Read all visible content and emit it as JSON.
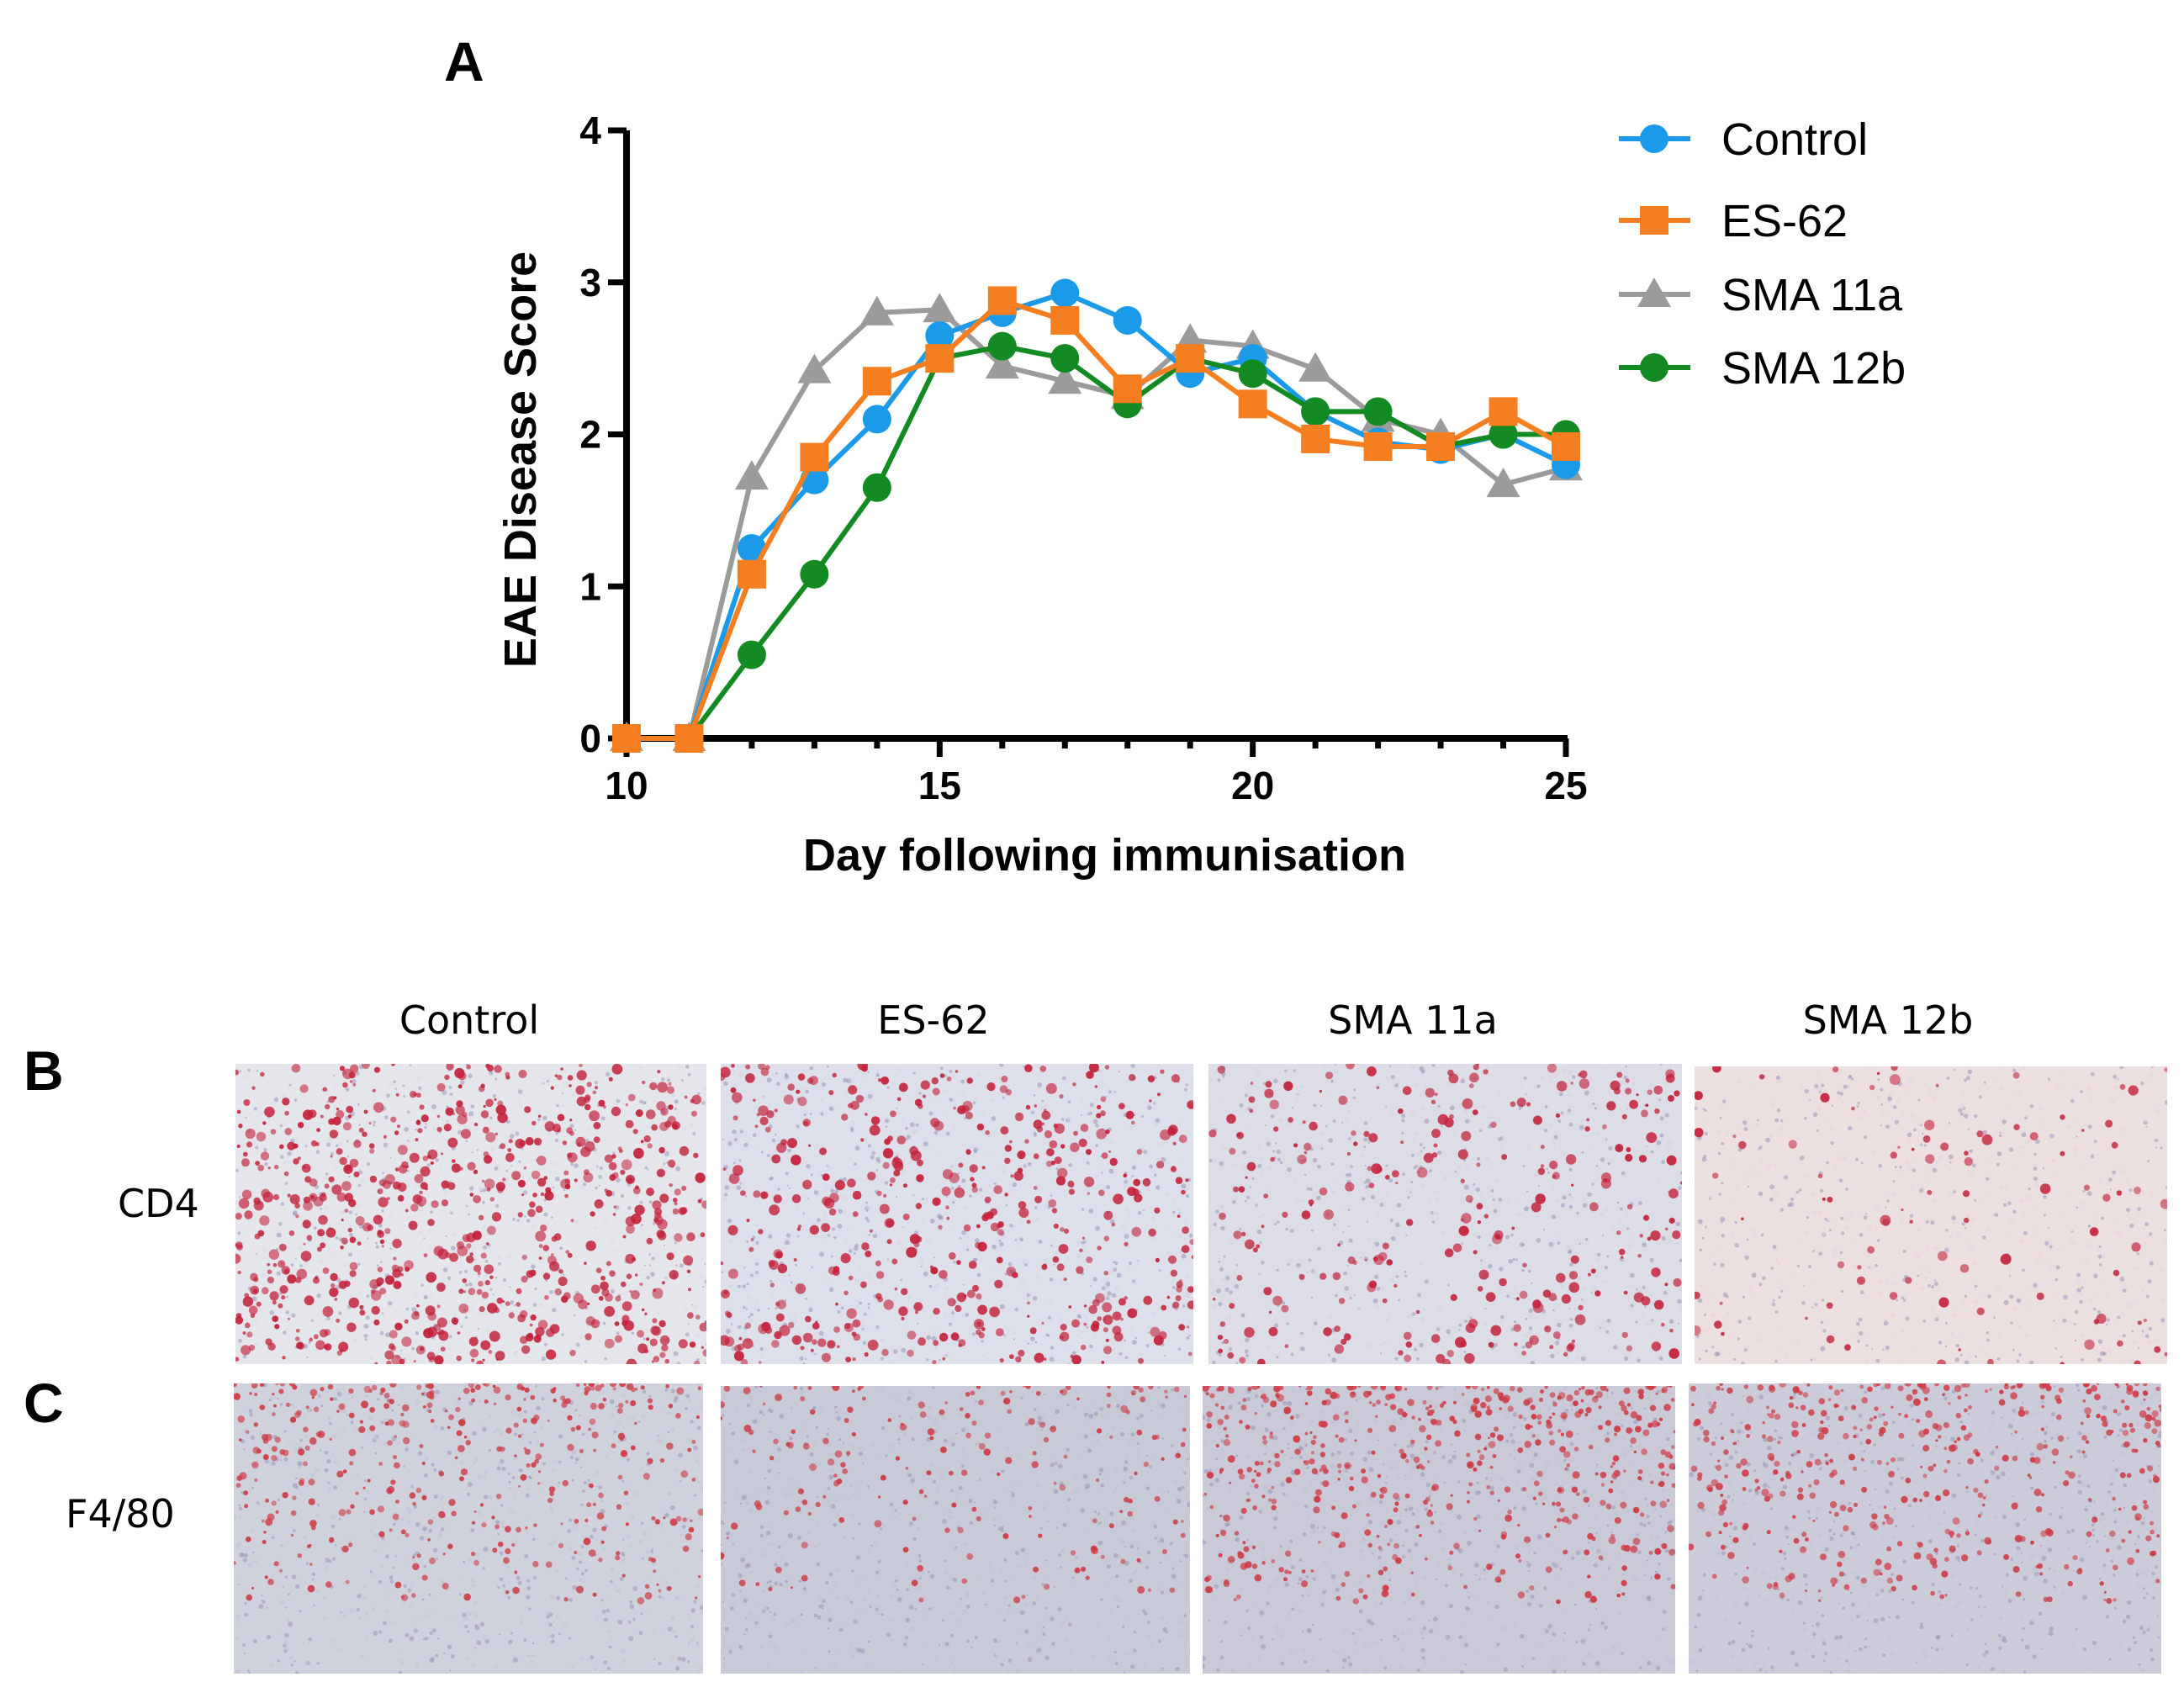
{
  "panels": {
    "a": "A",
    "b": "B",
    "c": "C"
  },
  "chart_data": {
    "type": "line",
    "title": "",
    "xlabel": "Day following immunisation",
    "ylabel": "EAE Disease Score",
    "xlim": [
      10,
      25
    ],
    "ylim": [
      0,
      4
    ],
    "x_ticks": [
      "10",
      "15",
      "20",
      "25"
    ],
    "y_ticks": [
      "0",
      "1",
      "2",
      "3",
      "4"
    ],
    "legend_position": "top-right",
    "x": [
      10,
      11,
      12,
      13,
      14,
      15,
      16,
      17,
      18,
      19,
      20,
      21,
      22,
      23,
      24,
      25
    ],
    "series": [
      {
        "name": "Control",
        "color": "#1a9ae8",
        "marker": "circle",
        "values": [
          0,
          0,
          1.25,
          1.7,
          2.1,
          2.65,
          2.8,
          2.93,
          2.75,
          2.4,
          2.5,
          2.15,
          1.95,
          1.9,
          2.0,
          1.8
        ]
      },
      {
        "name": "ES-62",
        "color": "#f57f20",
        "marker": "square",
        "values": [
          0,
          0,
          1.08,
          1.85,
          2.35,
          2.5,
          2.88,
          2.75,
          2.3,
          2.5,
          2.2,
          1.97,
          1.92,
          1.92,
          2.15,
          1.92
        ]
      },
      {
        "name": "SMA 11a",
        "color": "#9b9b9b",
        "marker": "triangle",
        "values": [
          0,
          0,
          1.72,
          2.42,
          2.8,
          2.82,
          2.45,
          2.35,
          2.25,
          2.62,
          2.58,
          2.43,
          2.1,
          2.0,
          1.67,
          1.78
        ]
      },
      {
        "name": "SMA 12b",
        "color": "#138a22",
        "marker": "circle",
        "values": [
          0,
          0,
          0.55,
          1.08,
          1.65,
          2.5,
          2.58,
          2.5,
          2.2,
          2.5,
          2.4,
          2.15,
          2.15,
          1.92,
          2.0,
          2.0
        ]
      }
    ]
  },
  "histology": {
    "columns": [
      "Control",
      "ES-62",
      "SMA 11a",
      "SMA 12b"
    ],
    "rows": [
      {
        "label": "CD4",
        "stain_color": "#c4223a",
        "densities": [
          0.9,
          0.6,
          0.35,
          0.12
        ]
      },
      {
        "label": "F4/80",
        "stain_color": "#cf3a44",
        "densities": [
          0.5,
          0.25,
          0.7,
          0.6
        ]
      }
    ]
  }
}
